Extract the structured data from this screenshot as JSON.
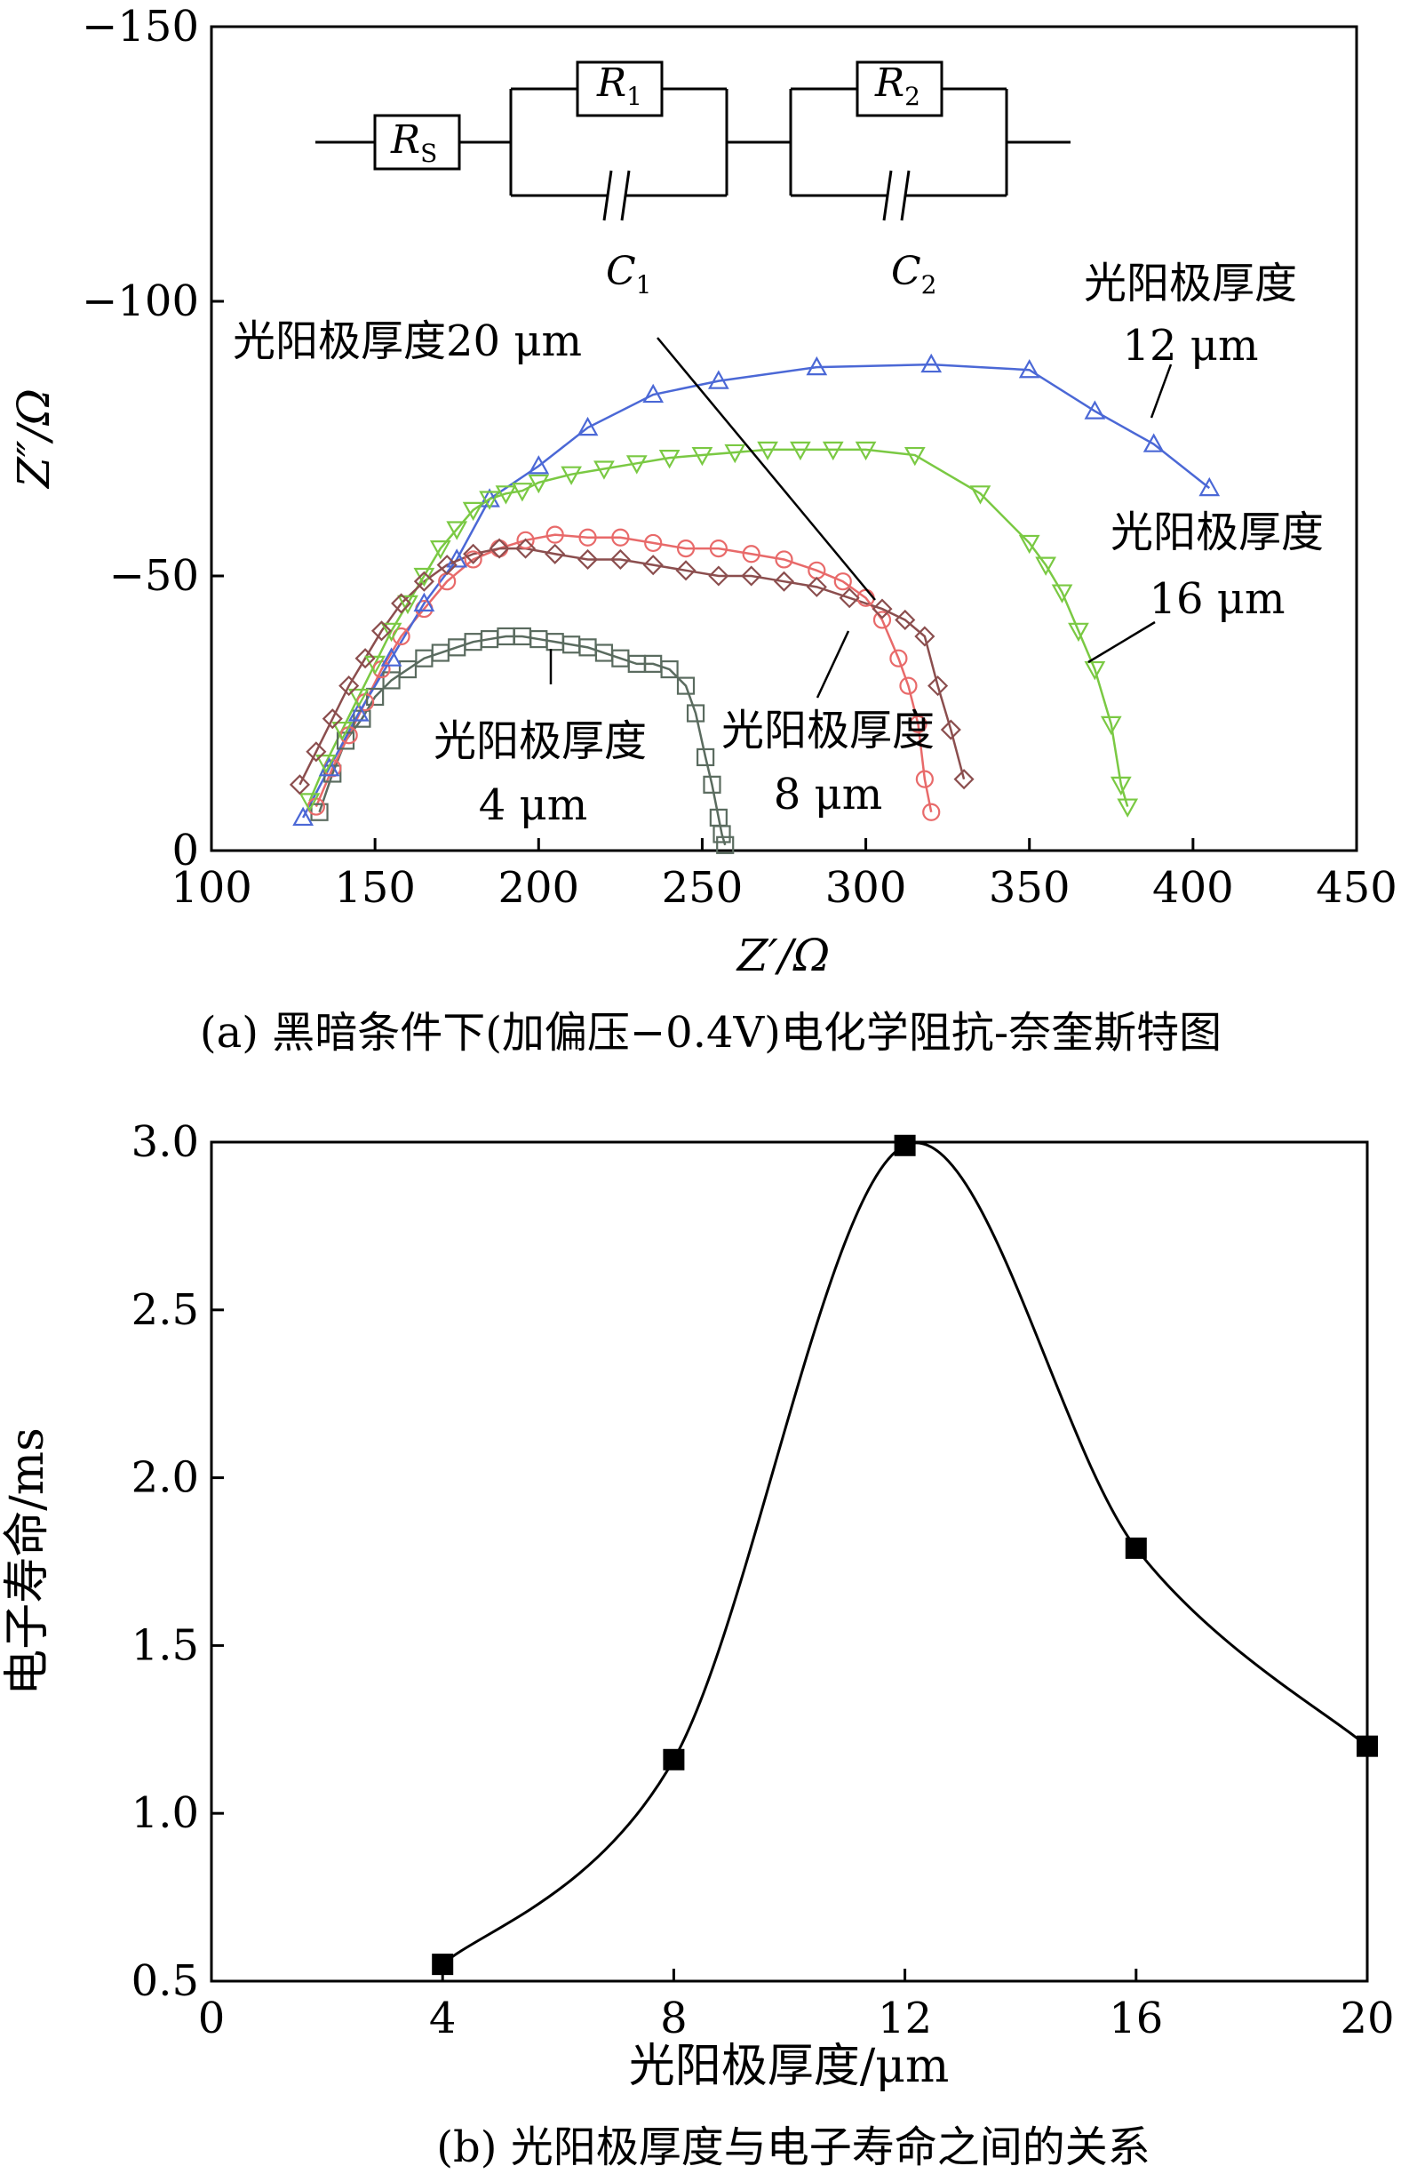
{
  "chart_data": [
    {
      "type": "scatter",
      "caption": "(a) 黑暗条件下(加偏压−0.4V)电化学阻抗-奈奎斯特图",
      "xlabel": "Z′/Ω",
      "ylabel": "Z″/Ω",
      "xlim": [
        100,
        450
      ],
      "ylim": [
        0,
        -150
      ],
      "y_axis_inverted": true,
      "xticks": [
        "100",
        "150",
        "200",
        "250",
        "300",
        "350",
        "400",
        "450"
      ],
      "yticks": [
        "0",
        "−50",
        "−100",
        "−150"
      ],
      "grid": false,
      "series": [
        {
          "thickness": "4 μm",
          "label_lines": [
            "光阳极厚度",
            "4 μm"
          ],
          "marker": "square",
          "color": "#5a6b5f",
          "x": [
            133,
            137,
            141,
            146,
            150,
            155,
            160,
            165,
            170,
            175,
            180,
            185,
            190,
            195,
            200,
            205,
            210,
            215,
            220,
            225,
            230,
            235,
            240,
            245,
            248,
            251,
            253,
            255,
            256,
            257
          ],
          "y": [
            -7,
            -14,
            -20,
            -24,
            -28,
            -31,
            -33,
            -35,
            -36,
            -37,
            -38,
            -38.5,
            -39,
            -39,
            -38.5,
            -38,
            -37.5,
            -37,
            -36,
            -35,
            -34,
            -34,
            -33,
            -30,
            -25,
            -17,
            -12,
            -6,
            -3,
            -1
          ]
        },
        {
          "thickness": "8 μm",
          "label_lines": [
            "光阳极厚度",
            "8 μm"
          ],
          "marker": "circle",
          "color": "#e86a6a",
          "x": [
            132,
            137,
            142,
            147,
            152,
            158,
            165,
            172,
            180,
            188,
            196,
            205,
            215,
            225,
            235,
            245,
            255,
            265,
            275,
            285,
            293,
            300,
            305,
            310,
            313,
            316,
            318,
            320
          ],
          "y": [
            -8,
            -15,
            -21,
            -27,
            -33,
            -39,
            -44,
            -49,
            -53,
            -55,
            -56.5,
            -57.5,
            -57,
            -57,
            -56,
            -55,
            -55,
            -54,
            -53,
            -51,
            -49,
            -46,
            -42,
            -35,
            -30,
            -23,
            -13,
            -7
          ]
        },
        {
          "thickness": "12 μm",
          "label_lines": [
            "光阳极厚度",
            "12 μm"
          ],
          "marker": "triangle-up",
          "color": "#4b68d6",
          "x": [
            128,
            136,
            145,
            155,
            165,
            175,
            185,
            200,
            215,
            235,
            255,
            285,
            320,
            350,
            370,
            388,
            405
          ],
          "y": [
            -6,
            -15,
            -25,
            -35,
            -45,
            -53,
            -64,
            -70,
            -77,
            -83,
            -85.5,
            -88,
            -88.5,
            -87.5,
            -80,
            -74,
            -66
          ]
        },
        {
          "thickness": "16 μm",
          "label_lines": [
            "光阳极厚度",
            "16 μm"
          ],
          "marker": "triangle-down",
          "color": "#7ac943",
          "x": [
            130,
            135,
            140,
            145,
            150,
            155,
            160,
            165,
            170,
            175,
            180,
            185,
            190,
            195,
            200,
            210,
            220,
            230,
            240,
            250,
            260,
            270,
            280,
            290,
            300,
            315,
            335,
            350,
            355,
            360,
            365,
            370,
            375,
            378,
            380
          ],
          "y": [
            -9,
            -16,
            -22,
            -28,
            -34,
            -40,
            -45,
            -50,
            -55,
            -58.5,
            -62,
            -64,
            -65,
            -65.5,
            -67,
            -68.5,
            -69.5,
            -70.5,
            -71.5,
            -72,
            -72.5,
            -73,
            -73,
            -73,
            -73,
            -72,
            -65,
            -56,
            -52,
            -47,
            -40,
            -33,
            -23,
            -12,
            -8
          ]
        },
        {
          "thickness": "20 μm",
          "label_lines": [
            "光阳极厚度20 μm"
          ],
          "marker": "diamond",
          "color": "#8b4e4e",
          "x": [
            127,
            132,
            137,
            142,
            147,
            152,
            158,
            165,
            172,
            180,
            188,
            196,
            205,
            215,
            225,
            235,
            245,
            255,
            265,
            275,
            285,
            295,
            305,
            312,
            318,
            322,
            326,
            330
          ],
          "y": [
            -12,
            -18,
            -24,
            -30,
            -35,
            -40,
            -45,
            -49,
            -52,
            -54,
            -55,
            -55,
            -54,
            -53,
            -53,
            -52,
            -51,
            -50,
            -50,
            -49,
            -48,
            -46,
            -44,
            -42,
            -39,
            -30,
            -22,
            -13
          ]
        }
      ],
      "inset_circuit": {
        "elements": [
          "RS",
          "R1",
          "C1",
          "R2",
          "C2"
        ]
      }
    },
    {
      "type": "line",
      "caption": "(b) 光阳极厚度与电子寿命之间的关系",
      "xlabel": "光阳极厚度/μm",
      "ylabel": "电子寿命/ms",
      "xlim": [
        0,
        20
      ],
      "ylim": [
        0.5,
        3.0
      ],
      "xticks": [
        "0",
        "4",
        "8",
        "12",
        "16",
        "20"
      ],
      "yticks": [
        "0.5",
        "1.0",
        "1.5",
        "2.0",
        "2.5",
        "3.0"
      ],
      "grid": false,
      "x": [
        4,
        8,
        12,
        16,
        20
      ],
      "y": [
        0.55,
        1.16,
        2.99,
        1.79,
        1.2
      ],
      "marker": "square",
      "color": "#000000"
    }
  ]
}
